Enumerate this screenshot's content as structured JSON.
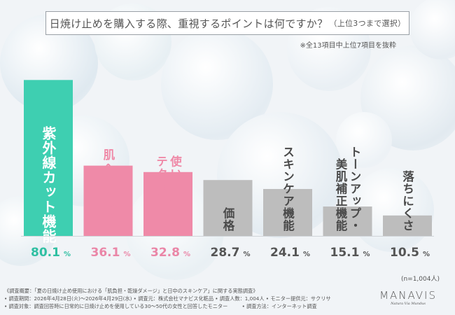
{
  "title": {
    "main": "日焼け止めを購入する際、重視するポイントは何ですか？",
    "suffix": "（上位3つまで選択）"
  },
  "note": "※全13項目中上位7項目を抜粋",
  "sample_size": "(n=1,004人)",
  "footer": {
    "line1": "《調査概要：「夏の日焼け止め使用における「肌負担・乾燥ダメージ」と日中のスキンケア」に関する実態調査》",
    "line2": "• 調査期間：2026年4月28日(火)〜2026年4月29日(水) • 調査元：株式会社マナビス化粧品 • 調査人数：1,004人 • モニター提供元：サクリサ",
    "line3a": "• 調査対象：調査回答時に日常的に日焼け止めを使用している30〜50代の女性と回答したモニター",
    "line3b": "• 調査方法：インターネット調査"
  },
  "logo": {
    "brand": "MANAVIS",
    "tag": "Natura Via Mundus"
  },
  "colors": {
    "top1": "#3ecfb1",
    "top1_label": "#2fbfa2",
    "top2": "#ef8aa8",
    "top2_label": "#ea86a7",
    "other": "#bdbdbd",
    "other_label": "#555555"
  },
  "chart_data": {
    "type": "bar",
    "categories": [
      "紫外線カット機能",
      "肌への優しさ",
      "使い心地・テクスチャー",
      "価格",
      "スキンケア機能",
      "トーンアップ・美肌補正機能",
      "落ちにくさ"
    ],
    "category_lines": [
      [
        "紫外線カット機能"
      ],
      [
        "肌への優しさ"
      ],
      [
        "使い心地・",
        "テクスチャー"
      ],
      [
        "価格"
      ],
      [
        "スキンケア機能"
      ],
      [
        "トーンアップ・",
        "美肌補正機能"
      ],
      [
        "落ちにくさ"
      ]
    ],
    "values": [
      80.1,
      36.1,
      32.8,
      28.7,
      24.1,
      15.1,
      10.5
    ],
    "value_labels": [
      "80.1",
      "36.1",
      "32.8",
      "28.7",
      "24.1",
      "15.1",
      "10.5"
    ],
    "unit": "%",
    "highlight": [
      "top1",
      "top2",
      "top2",
      "other",
      "other",
      "other",
      "other"
    ],
    "ylim": [
      0,
      82
    ]
  }
}
